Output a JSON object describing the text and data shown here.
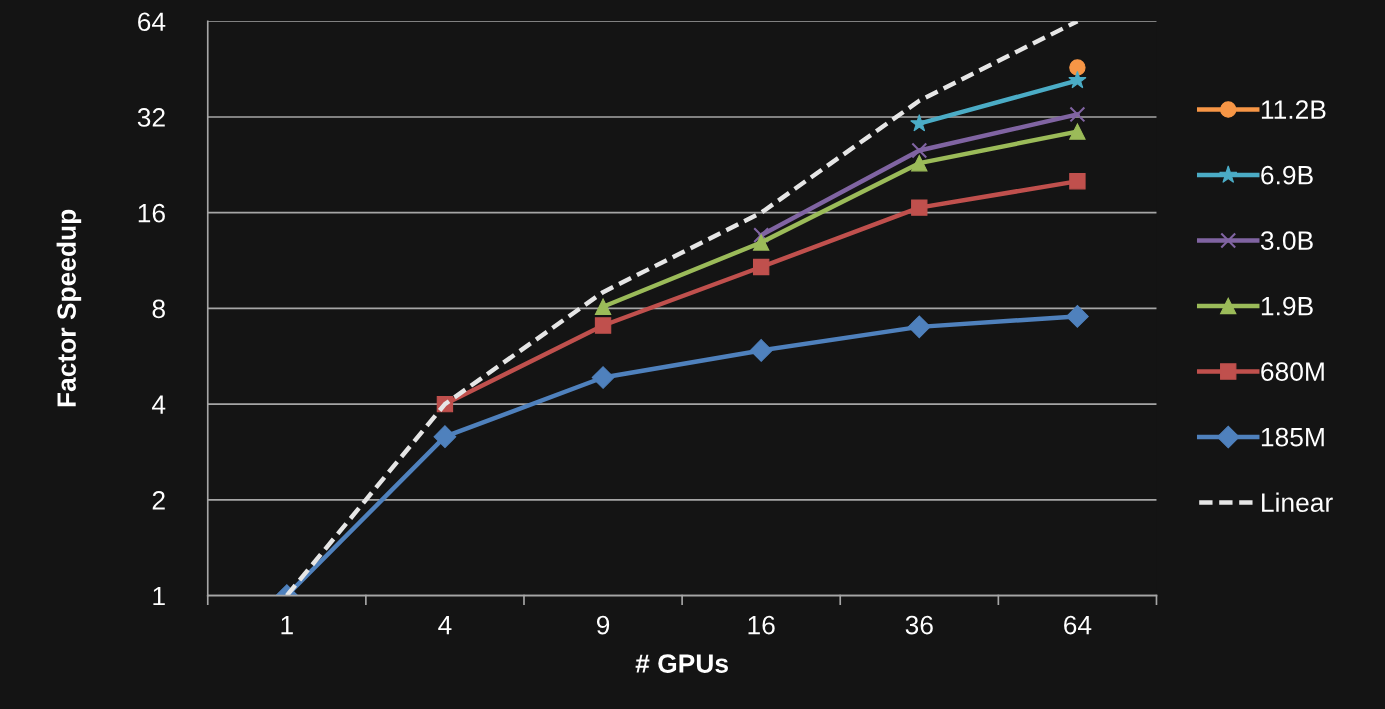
{
  "chart_data": {
    "type": "line",
    "xlabel": "# GPUs",
    "ylabel": "Factor Speedup",
    "categories": [
      "1",
      "4",
      "9",
      "16",
      "36",
      "64"
    ],
    "log": "y",
    "ylim": [
      1,
      64
    ],
    "yticks": [
      1,
      2,
      4,
      8,
      16,
      32,
      64
    ],
    "grid": "y",
    "legend": "right",
    "series": [
      {
        "name": "11.2B",
        "color": "#f79646",
        "marker": "circle",
        "values": [
          null,
          null,
          null,
          null,
          null,
          45.8
        ]
      },
      {
        "name": "6.9B",
        "color": "#4bacc6",
        "marker": "star",
        "values": [
          null,
          null,
          null,
          null,
          30.5,
          41.7
        ]
      },
      {
        "name": "3.0B",
        "color": "#8064a2",
        "marker": "cross",
        "values": [
          null,
          null,
          null,
          13.6,
          25.1,
          32.6
        ]
      },
      {
        "name": "1.9B",
        "color": "#9bbb59",
        "marker": "triangle",
        "values": [
          null,
          null,
          8.1,
          12.9,
          22.9,
          28.8
        ]
      },
      {
        "name": "680M",
        "color": "#c0504d",
        "marker": "square",
        "values": [
          null,
          4.0,
          7.07,
          10.8,
          16.6,
          20.1
        ]
      },
      {
        "name": "185M",
        "color": "#4f81bd",
        "marker": "diamond",
        "values": [
          1,
          3.16,
          4.85,
          5.9,
          7.0,
          7.55
        ]
      },
      {
        "name": "Linear",
        "color": "#e6e6e6",
        "marker": "none",
        "line_style": "dashed",
        "values": [
          1,
          4,
          9,
          16,
          36,
          64
        ]
      }
    ]
  }
}
